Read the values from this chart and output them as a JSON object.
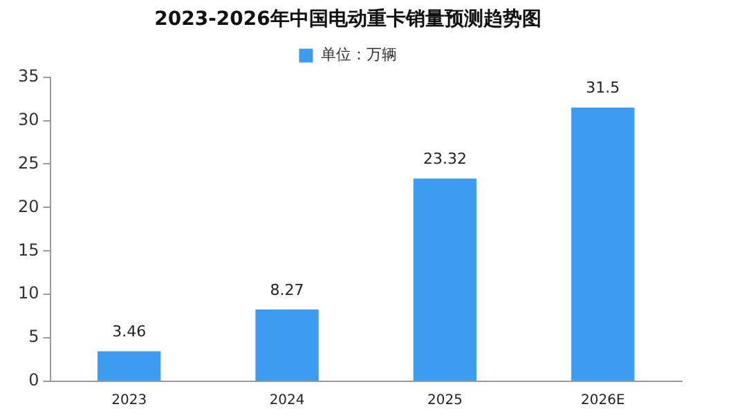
{
  "chart_data": {
    "type": "bar",
    "title": "2023-2026年中国电动重卡销量预测趋势图",
    "categories": [
      "2023",
      "2024",
      "2025",
      "2026E"
    ],
    "series": [
      {
        "name": "单位：万辆",
        "color": "#3d9bf0",
        "values": [
          3.46,
          8.27,
          23.32,
          31.5
        ]
      }
    ],
    "ylim": [
      0,
      35
    ],
    "yticks": [
      0,
      5,
      10,
      15,
      20,
      25,
      30,
      35
    ],
    "grid": false,
    "legend": "top",
    "data_labels": true
  }
}
